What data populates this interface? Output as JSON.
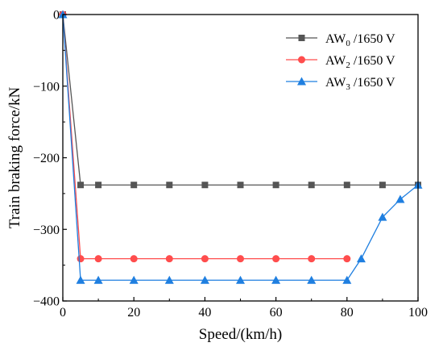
{
  "chart_data": {
    "type": "line",
    "title": "",
    "xlabel": "Speed/(km/h)",
    "ylabel": "Train braking force/kN",
    "xlim": [
      0,
      100
    ],
    "ylim": [
      -400,
      0
    ],
    "xticks": [
      0,
      20,
      40,
      60,
      80,
      100
    ],
    "yticks": [
      0,
      -100,
      -200,
      -300,
      -400
    ],
    "grid": false,
    "legend_position": "top-right",
    "series": [
      {
        "name": "AW0 /1650 V",
        "name_parts": {
          "base": "AW",
          "sub": "0",
          "suffix": " /1650 V"
        },
        "color": "#555555",
        "marker": "square",
        "x": [
          0,
          5,
          10,
          20,
          30,
          40,
          50,
          60,
          70,
          80,
          90,
          100
        ],
        "y": [
          0,
          -238,
          -238,
          -238,
          -238,
          -238,
          -238,
          -238,
          -238,
          -238,
          -238,
          -238
        ]
      },
      {
        "name": "AW2 /1650 V",
        "name_parts": {
          "base": "AW",
          "sub": "2",
          "suffix": " /1650 V"
        },
        "color": "#ff4d4d",
        "marker": "circle",
        "x": [
          0,
          5,
          10,
          20,
          30,
          40,
          50,
          60,
          70,
          80
        ],
        "y": [
          0,
          -341,
          -341,
          -341,
          -341,
          -341,
          -341,
          -341,
          -341,
          -341
        ]
      },
      {
        "name": "AW3 /1650 V",
        "name_parts": {
          "base": "AW",
          "sub": "3",
          "suffix": " /1650 V"
        },
        "color": "#1f7fe0",
        "marker": "triangle",
        "x": [
          0,
          5,
          10,
          20,
          30,
          40,
          50,
          60,
          70,
          80,
          84,
          90,
          95,
          100
        ],
        "y": [
          0,
          -371,
          -371,
          -371,
          -371,
          -371,
          -371,
          -371,
          -371,
          -371,
          -341,
          -283,
          -258,
          -238
        ]
      }
    ]
  }
}
